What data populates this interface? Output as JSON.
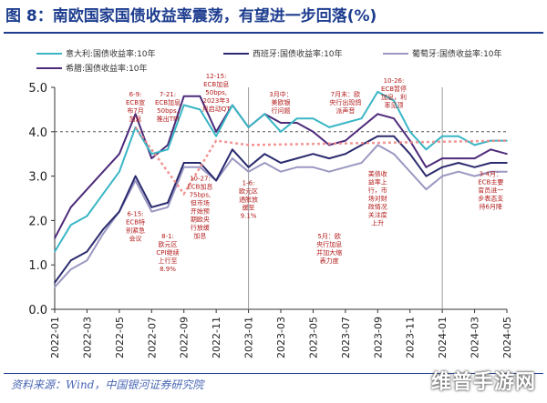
{
  "title": "图 8：南欧国家国债收益率震荡，有望进一步回落(%)",
  "source": "资料来源：Wind，中国银河证券研究院",
  "watermark": "维普手游网",
  "chart_data": {
    "type": "line",
    "ylim": [
      0.0,
      5.0
    ],
    "y_ticks": [
      "0.0",
      "1.0",
      "2.0",
      "3.0",
      "4.0",
      "5.0"
    ],
    "x_tick_labels": [
      "2022-01",
      "2022-03",
      "2022-05",
      "2022-07",
      "2022-09",
      "2022-11",
      "2023-01",
      "2023-03",
      "2023-05",
      "2023-07",
      "2023-09",
      "2023-11",
      "2024-01",
      "2024-03",
      "2024-05"
    ],
    "reference_line": 4.0,
    "series": [
      {
        "name": "意大利:国债收益率:10年",
        "color": "#3ab6c5",
        "x": [
          "2022-01",
          "2022-02",
          "2022-03",
          "2022-04",
          "2022-05",
          "2022-06",
          "2022-07",
          "2022-08",
          "2022-09",
          "2022-10",
          "2022-11",
          "2022-12",
          "2023-01",
          "2023-02",
          "2023-03",
          "2023-04",
          "2023-05",
          "2023-06",
          "2023-07",
          "2023-08",
          "2023-09",
          "2023-10",
          "2023-11",
          "2023-12",
          "2024-01",
          "2024-02",
          "2024-03",
          "2024-04",
          "2024-05"
        ],
        "values": [
          1.3,
          1.9,
          2.1,
          2.6,
          3.1,
          4.1,
          3.5,
          3.6,
          4.6,
          4.5,
          3.9,
          4.6,
          4.1,
          4.4,
          4.0,
          4.3,
          4.3,
          4.1,
          4.2,
          4.3,
          4.9,
          4.7,
          4.0,
          3.6,
          3.9,
          3.9,
          3.7,
          3.8,
          3.8
        ]
      },
      {
        "name": "西班牙:国债收益率:10年",
        "color": "#2a2a6e",
        "x": [
          "2022-01",
          "2022-02",
          "2022-03",
          "2022-04",
          "2022-05",
          "2022-06",
          "2022-07",
          "2022-08",
          "2022-09",
          "2022-10",
          "2022-11",
          "2022-12",
          "2023-01",
          "2023-02",
          "2023-03",
          "2023-04",
          "2023-05",
          "2023-06",
          "2023-07",
          "2023-08",
          "2023-09",
          "2023-10",
          "2023-11",
          "2023-12",
          "2024-01",
          "2024-02",
          "2024-03",
          "2024-04",
          "2024-05"
        ],
        "values": [
          0.6,
          1.1,
          1.3,
          1.8,
          2.2,
          3.0,
          2.3,
          2.4,
          3.3,
          3.3,
          2.9,
          3.6,
          3.2,
          3.5,
          3.3,
          3.4,
          3.5,
          3.4,
          3.5,
          3.7,
          3.9,
          3.9,
          3.5,
          3.0,
          3.2,
          3.3,
          3.2,
          3.3,
          3.3
        ]
      },
      {
        "name": "葡萄牙:国债收益率:10年",
        "color": "#9b98c2",
        "x": [
          "2022-01",
          "2022-02",
          "2022-03",
          "2022-04",
          "2022-05",
          "2022-06",
          "2022-07",
          "2022-08",
          "2022-09",
          "2022-10",
          "2022-11",
          "2022-12",
          "2023-01",
          "2023-02",
          "2023-03",
          "2023-04",
          "2023-05",
          "2023-06",
          "2023-07",
          "2023-08",
          "2023-09",
          "2023-10",
          "2023-11",
          "2023-12",
          "2024-01",
          "2024-02",
          "2024-03",
          "2024-04",
          "2024-05"
        ],
        "values": [
          0.5,
          0.9,
          1.1,
          1.7,
          2.2,
          2.9,
          2.2,
          2.3,
          3.2,
          3.2,
          2.9,
          3.4,
          3.1,
          3.3,
          3.1,
          3.2,
          3.2,
          3.1,
          3.2,
          3.3,
          3.7,
          3.5,
          3.1,
          2.7,
          3.0,
          3.1,
          3.0,
          3.1,
          3.1
        ]
      },
      {
        "name": "希腊:国债收益率:10年",
        "color": "#4d2a7a",
        "x": [
          "2022-01",
          "2022-02",
          "2022-03",
          "2022-04",
          "2022-05",
          "2022-06",
          "2022-07",
          "2022-08",
          "2022-09",
          "2022-10",
          "2022-11",
          "2022-12",
          "2023-01",
          "2023-02",
          "2023-03",
          "2023-04",
          "2023-05",
          "2023-06",
          "2023-07",
          "2023-08",
          "2023-09",
          "2023-10",
          "2023-11",
          "2023-12",
          "2024-01",
          "2024-02",
          "2024-03",
          "2024-04",
          "2024-05"
        ],
        "values": [
          1.6,
          2.3,
          2.7,
          3.1,
          3.5,
          4.4,
          3.4,
          3.7,
          4.8,
          4.8,
          4.0,
          4.6,
          4.1,
          4.4,
          4.2,
          4.2,
          4.0,
          3.7,
          3.8,
          4.1,
          4.4,
          4.3,
          3.8,
          3.2,
          3.4,
          3.4,
          3.4,
          3.6,
          3.5
        ]
      }
    ],
    "arrow_path": [
      {
        "x": "2022-06",
        "y": 4.1
      },
      {
        "x": "2022-09",
        "y": 2.6
      },
      {
        "x": "2022-11",
        "y": 3.8
      },
      {
        "x": "2023-01",
        "y": 3.7
      },
      {
        "x": "2024-05",
        "y": 3.8
      }
    ],
    "annotations": [
      {
        "lines": [
          "6-9:",
          "ECB宣",
          "布7月",
          "加息"
        ],
        "x": "2022-06",
        "y": 4.8
      },
      {
        "lines": [
          "7-21:",
          "ECB加息",
          "50bps,",
          "推出TPI"
        ],
        "x": "2022-08",
        "y": 4.8
      },
      {
        "lines": [
          "12-15:",
          "ECB加息",
          "50bps,",
          "2023年3",
          "月启动QT"
        ],
        "x": "2022-11",
        "y": 5.2
      },
      {
        "lines": [
          "3月中：",
          "美欧银",
          "行问题"
        ],
        "x": "2023-03",
        "y": 4.8
      },
      {
        "lines": [
          "7月末：欧",
          "央行出现鸽",
          "派声音"
        ],
        "x": "2023-07",
        "y": 4.8
      },
      {
        "lines": [
          "10-26:",
          "ECB暂停",
          "加息，利",
          "率见顶"
        ],
        "x": "2023-10",
        "y": 5.1
      },
      {
        "lines": [
          "6-15:",
          "ECB特",
          "别紧急",
          "会议"
        ],
        "x": "2022-06",
        "y": 2.1
      },
      {
        "lines": [
          "8-1:",
          "欧元区",
          "CPI继续",
          "上行至",
          "8.9%"
        ],
        "x": "2022-08",
        "y": 1.6
      },
      {
        "lines": [
          "10-27:",
          "ECB加息",
          "75bps,",
          "但市场",
          "开始预",
          "期欧央",
          "行放缓",
          "加息"
        ],
        "x": "2022-10",
        "y": 2.9
      },
      {
        "lines": [
          "1-6:",
          "欧元区",
          "通胀放",
          "缓至",
          "9.1%"
        ],
        "x": "2023-01",
        "y": 2.8
      },
      {
        "lines": [
          "5月：欧",
          "央行加息",
          "并加大缩",
          "表力度"
        ],
        "x": "2023-06",
        "y": 1.6
      },
      {
        "lines": [
          "美债收",
          "益率上",
          "行，市",
          "场对财",
          "政情况",
          "关注度",
          "上升"
        ],
        "x": "2023-09",
        "y": 3.0
      },
      {
        "lines": [
          "3-4月：",
          "ECB主要",
          "官员进一",
          "步表态支",
          "持6月降"
        ],
        "x": "2024-04",
        "y": 3.0
      }
    ]
  }
}
